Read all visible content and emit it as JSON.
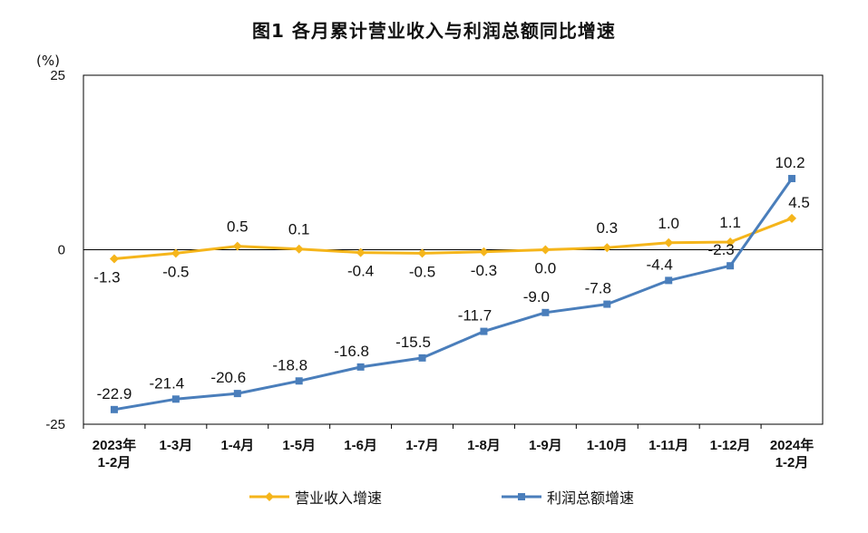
{
  "title": "图1  各月累计营业收入与利润总额同比增速",
  "y_unit": "(%)",
  "colors": {
    "revenue": "#f5b51b",
    "profit": "#4a7ebb"
  },
  "chart_data": {
    "type": "line",
    "title": "图1  各月累计营业收入与利润总额同比增速",
    "ylabel": "(%)",
    "ylim": [
      -25,
      25
    ],
    "yticks": [
      "25",
      "0",
      "-25"
    ],
    "categories": [
      [
        "2023年",
        "1-2月"
      ],
      [
        "1-3月"
      ],
      [
        "1-4月"
      ],
      [
        "1-5月"
      ],
      [
        "1-6月"
      ],
      [
        "1-7月"
      ],
      [
        "1-8月"
      ],
      [
        "1-9月"
      ],
      [
        "1-10月"
      ],
      [
        "1-11月"
      ],
      [
        "1-12月"
      ],
      [
        "2024年",
        "1-2月"
      ]
    ],
    "legend_position": "bottom",
    "grid": false,
    "series": [
      {
        "name": "营业收入增速",
        "color": "#f5b51b",
        "values": [
          -1.3,
          -0.5,
          0.5,
          0.1,
          -0.4,
          -0.5,
          -0.3,
          0.0,
          0.3,
          1.0,
          1.1,
          4.5
        ],
        "labels": [
          "-1.3",
          "-0.5",
          "0.5",
          "0.1",
          "-0.4",
          "-0.5",
          "-0.3",
          "0.0",
          "0.3",
          "1.0",
          "1.1",
          "4.5"
        ]
      },
      {
        "name": "利润总额增速",
        "color": "#4a7ebb",
        "values": [
          -22.9,
          -21.4,
          -20.6,
          -18.8,
          -16.8,
          -15.5,
          -11.7,
          -9.0,
          -7.8,
          -4.4,
          -2.3,
          10.2
        ],
        "labels": [
          "-22.9",
          "-21.4",
          "-20.6",
          "-18.8",
          "-16.8",
          "-15.5",
          "-11.7",
          "-9.0",
          "-7.8",
          "-4.4",
          "-2.3",
          "10.2"
        ]
      }
    ]
  }
}
